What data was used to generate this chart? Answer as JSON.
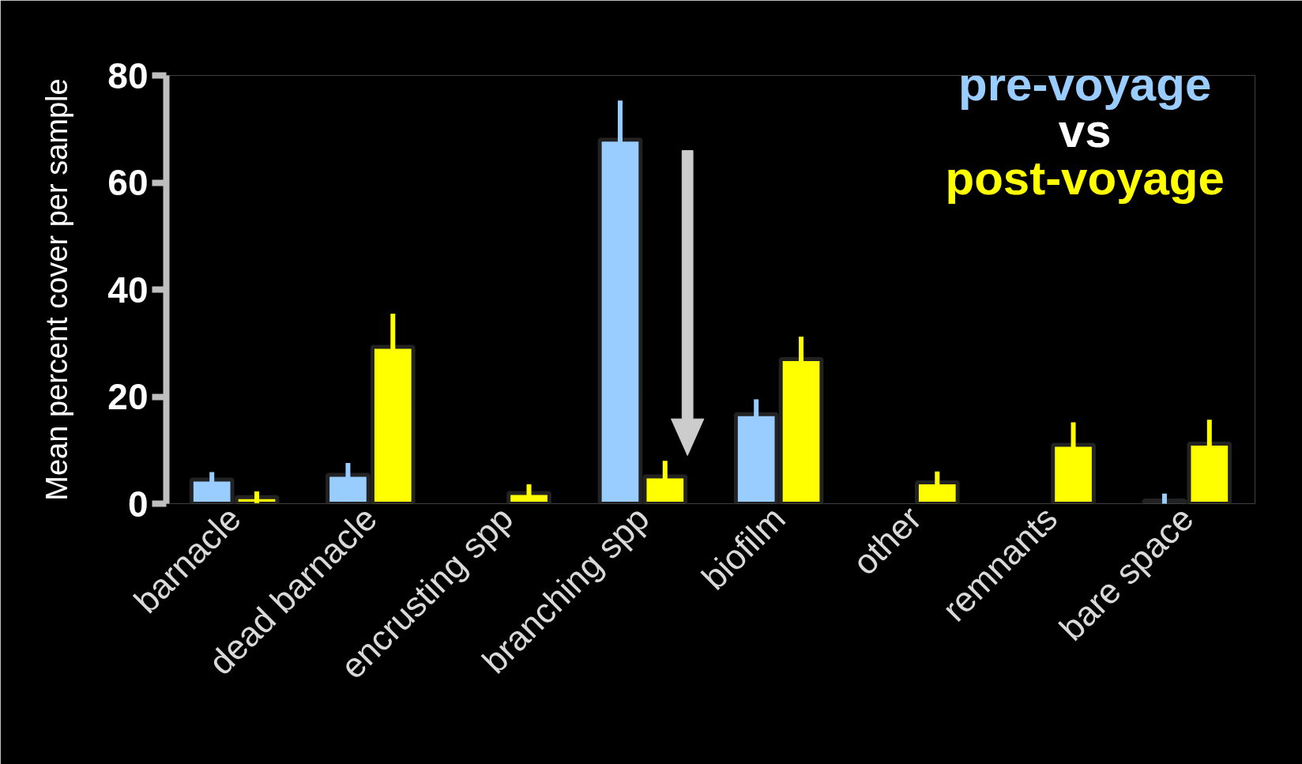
{
  "chart_data": {
    "type": "bar",
    "categories": [
      "barnacle",
      "dead barnacle",
      "encrusting spp",
      "branching spp",
      "biofilm",
      "other",
      "remnants",
      "bare space"
    ],
    "ylabel": "Mean percent cover per sample",
    "ylim": [
      0,
      80
    ],
    "yticks": [
      0,
      20,
      40,
      60,
      80
    ],
    "series": [
      {
        "name": "pre-voyage",
        "color": "#99ccff",
        "values": [
          4.5,
          5.4,
          null,
          68,
          16.7,
          null,
          null,
          0.6
        ],
        "errors": [
          1.4,
          2.2,
          null,
          7.3,
          2.8,
          null,
          null,
          1.3
        ]
      },
      {
        "name": "post-voyage",
        "color": "#ffff00",
        "values": [
          1.2,
          29.3,
          2.0,
          5.1,
          27,
          4.0,
          11,
          11.2
        ],
        "errors": [
          1.1,
          6.2,
          1.6,
          2.9,
          4.2,
          2.0,
          4.2,
          4.5
        ]
      }
    ],
    "annotations": [
      "vs"
    ],
    "grid": false
  }
}
